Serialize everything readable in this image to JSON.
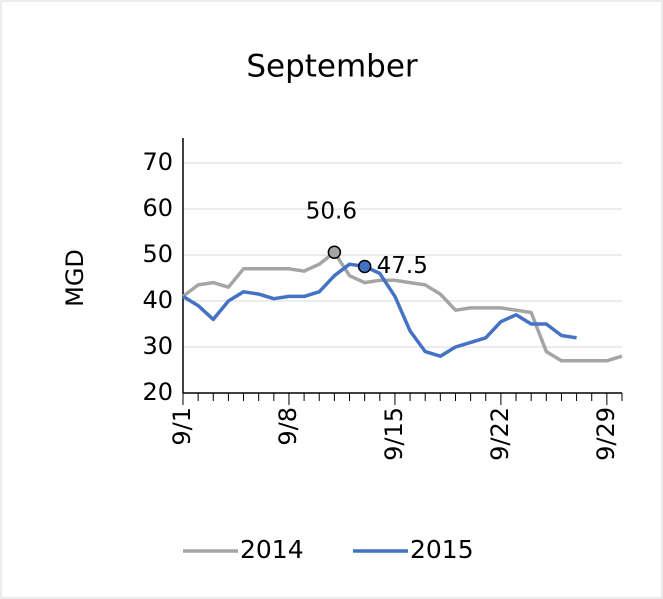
{
  "chart_data": {
    "type": "line",
    "title": "September",
    "y_label": "MGD",
    "categories": [
      "9/1",
      null,
      null,
      null,
      null,
      null,
      null,
      "9/8",
      null,
      null,
      null,
      null,
      null,
      null,
      "9/15",
      null,
      null,
      null,
      null,
      null,
      null,
      "9/22",
      null,
      null,
      null,
      null,
      null,
      null,
      "9/29",
      null
    ],
    "series": [
      {
        "name": "2014",
        "color": "#a5a5a5",
        "highlight": 10,
        "values": [
          41,
          43.5,
          44,
          43,
          47,
          47,
          47,
          47,
          46.5,
          48,
          50.6,
          45.5,
          44,
          44.5,
          44.5,
          44,
          43.5,
          41.5,
          38,
          38.5,
          38.5,
          38.5,
          38,
          37.5,
          29,
          27,
          27,
          27,
          27,
          28
        ]
      },
      {
        "name": "2015",
        "color": "#4472c4",
        "highlight": 12,
        "values": [
          41,
          39,
          36,
          40,
          42,
          41.5,
          40.5,
          41,
          41,
          42,
          45.5,
          48,
          47.5,
          46,
          41,
          33.5,
          29,
          28,
          30,
          31,
          32,
          35.5,
          37,
          35,
          35,
          32.5,
          32,
          null,
          null,
          null
        ]
      }
    ],
    "ylim": [
      20,
      70
    ],
    "yticks": [
      20,
      30,
      40,
      50,
      60,
      70
    ],
    "grid": true,
    "legend": "bottom"
  }
}
